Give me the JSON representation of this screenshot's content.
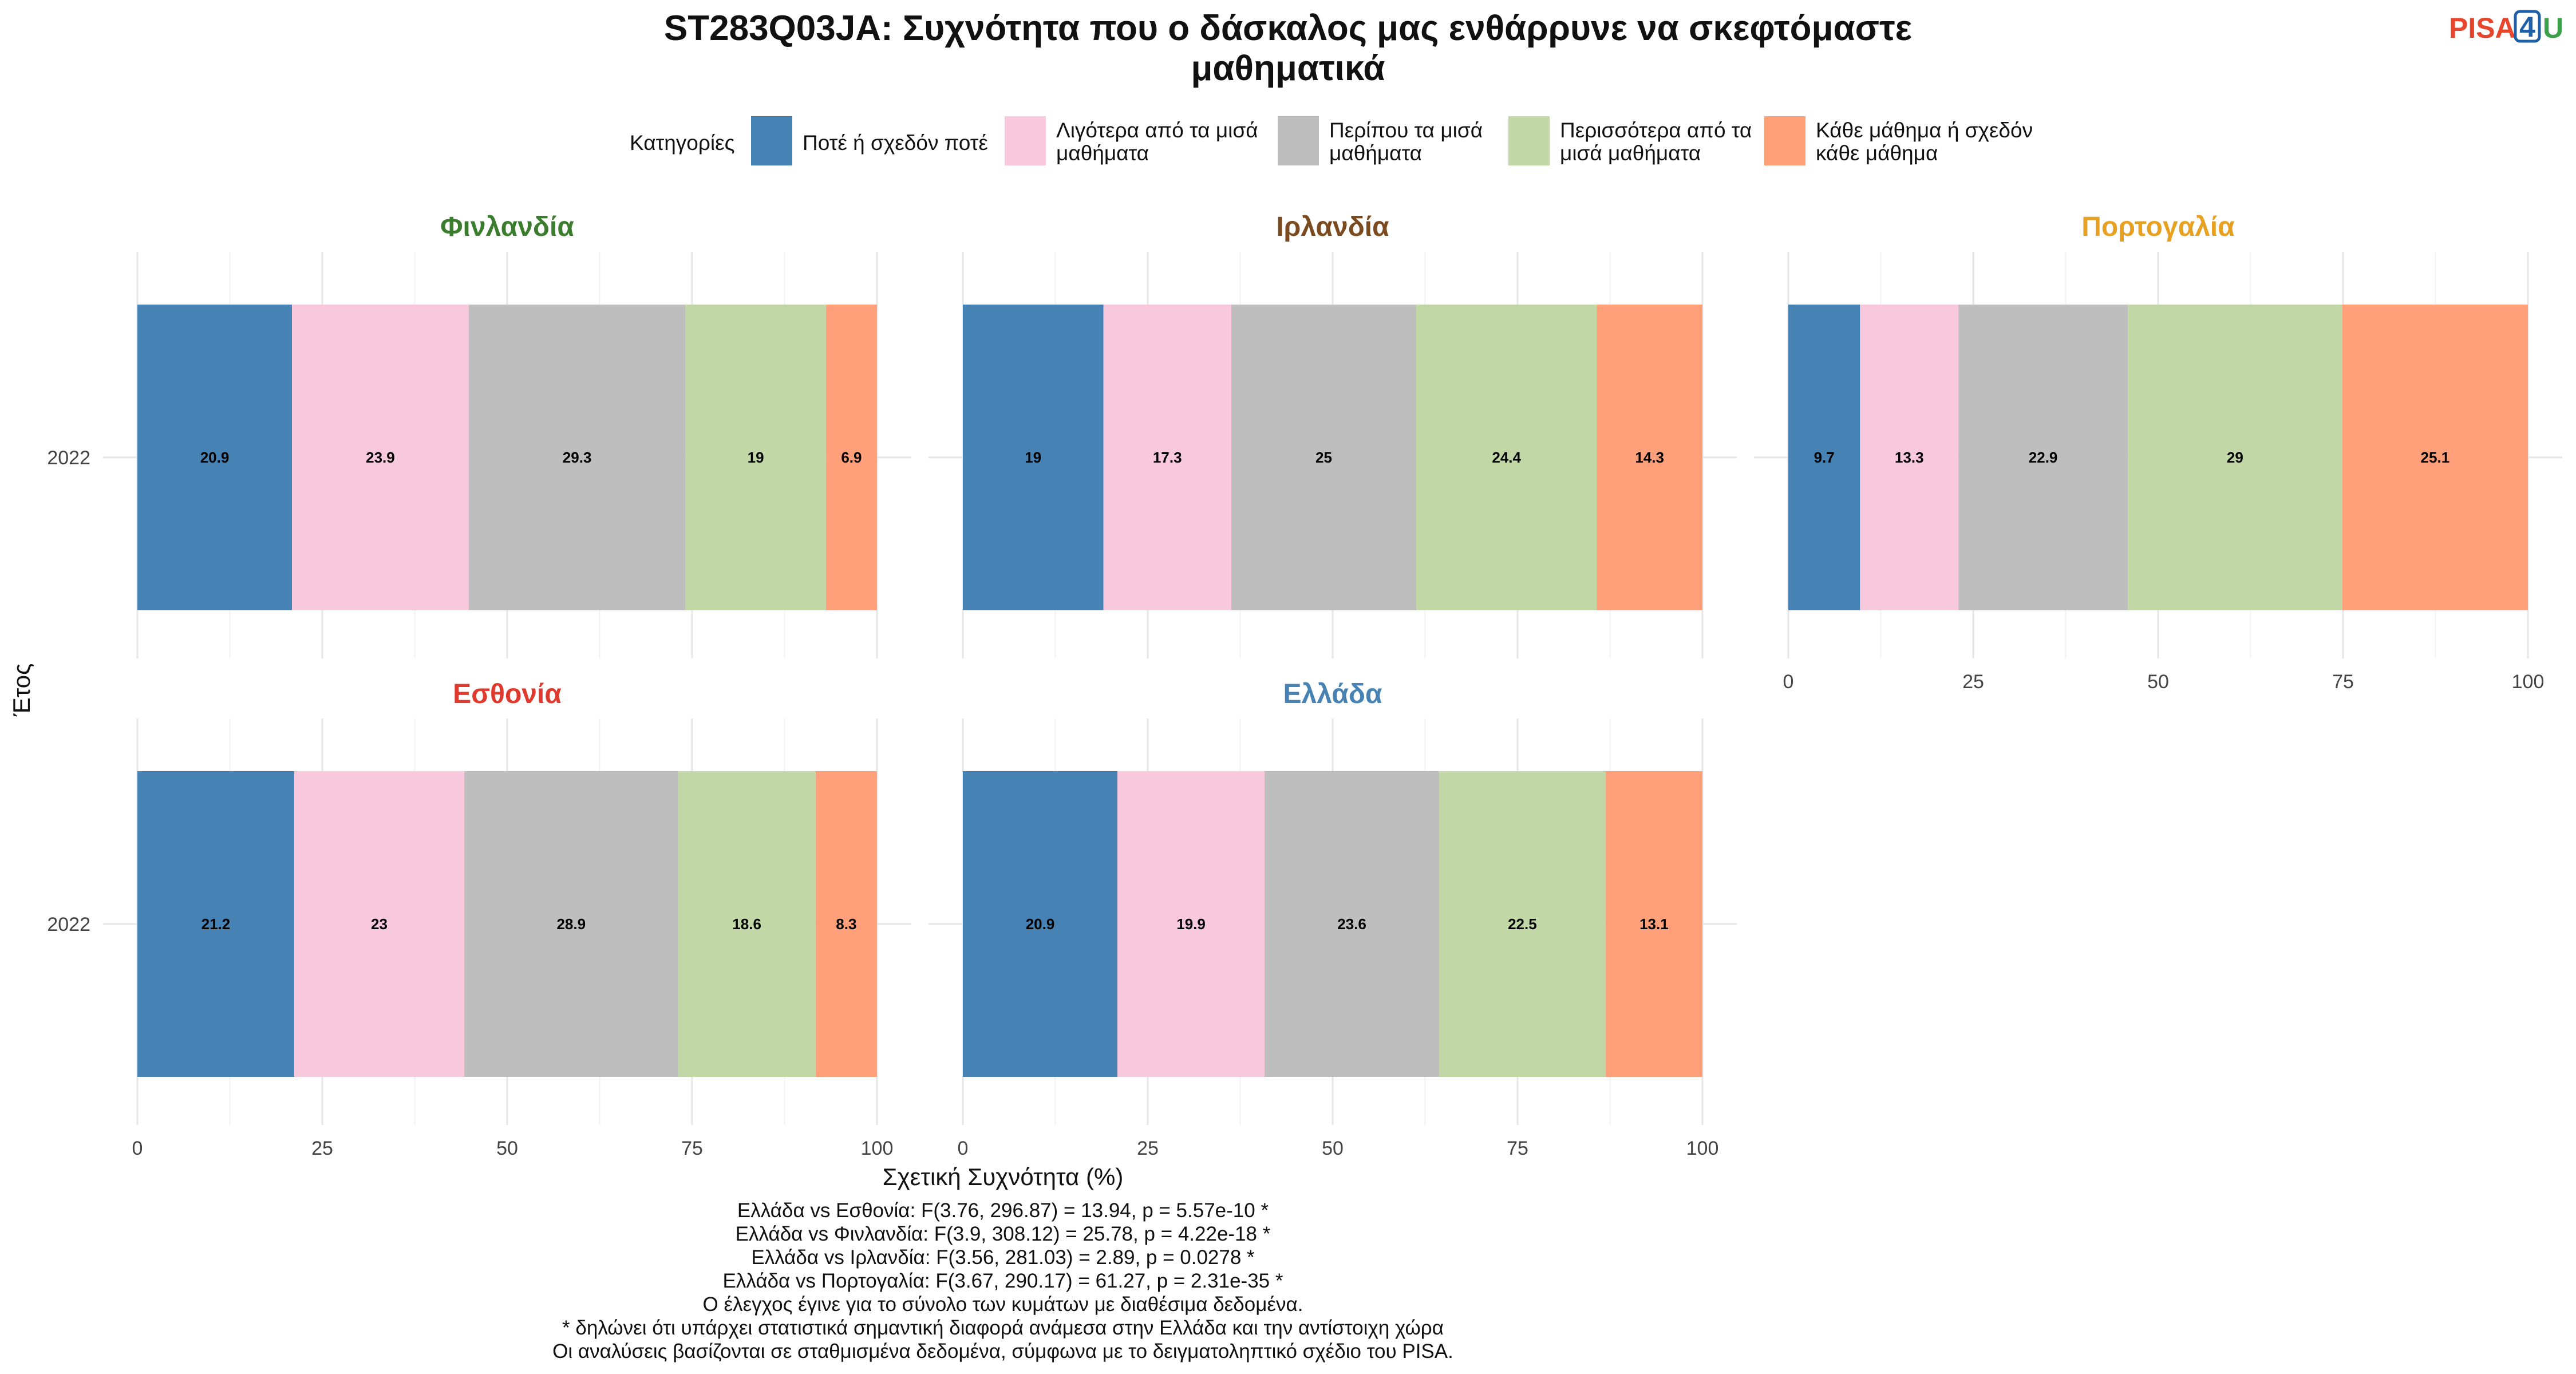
{
  "title_line1": "ST283Q03JA: Συχνότητα που ο δάσκαλος μας ενθάρρυνε να σκεφτόμαστε",
  "title_line2": "μαθηματικά",
  "logo": {
    "part1": "PISA",
    "part2": "4",
    "part3": "U",
    "color1": "#e8452c",
    "color2": "#1f5fa8",
    "color3": "#3aa04a"
  },
  "legend": {
    "title": "Κατηγορίες",
    "items": [
      {
        "lines": [
          "Ποτέ ή σχεδόν ποτέ"
        ],
        "color": "#4682b4"
      },
      {
        "lines": [
          "Λιγότερα από τα μισά",
          "μαθήματα"
        ],
        "color": "#f8c8dc"
      },
      {
        "lines": [
          "Περίπου τα μισά",
          "μαθήματα"
        ],
        "color": "#bebebe"
      },
      {
        "lines": [
          "Περισσότερα από τα",
          "μισά μαθήματα"
        ],
        "color": "#c1d8a6"
      },
      {
        "lines": [
          "Κάθε μάθημα ή σχεδόν",
          "κάθε μάθημα"
        ],
        "color": "#ffa07a"
      }
    ]
  },
  "chart_data": {
    "type": "bar",
    "orientation": "horizontal",
    "stacked": true,
    "xlabel": "Σχετική Συχνότητα (%)",
    "ylabel": "Έτος",
    "xlim": [
      0,
      100
    ],
    "xticks": [
      0,
      25,
      50,
      75,
      100
    ],
    "grid": true,
    "legend_position": "top",
    "categories": [
      "Ποτέ ή σχεδόν ποτέ",
      "Λιγότερα από τα μισά μαθήματα",
      "Περίπου τα μισά μαθήματα",
      "Περισσότερα από τα μισά μαθήματα",
      "Κάθε μάθημα ή σχεδόν κάθε μάθημα"
    ],
    "facets": [
      {
        "name": "Φινλανδία",
        "color": "#3a7d2c",
        "year": "2022",
        "values": [
          20.9,
          23.9,
          29.3,
          19,
          6.9
        ],
        "labels": [
          "20.9",
          "23.9",
          "29.3",
          "19",
          "6.9"
        ]
      },
      {
        "name": "Ιρλανδία",
        "color": "#7b4a1e",
        "year": "2022",
        "values": [
          19,
          17.3,
          25,
          24.4,
          14.3
        ],
        "labels": [
          "19",
          "17.3",
          "25",
          "24.4",
          "14.3"
        ]
      },
      {
        "name": "Πορτογαλία",
        "color": "#e8a020",
        "year": "2022",
        "values": [
          9.7,
          13.3,
          22.9,
          29,
          25.1
        ],
        "labels": [
          "9.7",
          "13.3",
          "22.9",
          "29",
          "25.1"
        ]
      },
      {
        "name": "Εσθονία",
        "color": "#e03a2e",
        "year": "2022",
        "values": [
          21.2,
          23,
          28.9,
          18.6,
          8.3
        ],
        "labels": [
          "21.2",
          "23",
          "28.9",
          "18.6",
          "8.3"
        ]
      },
      {
        "name": "Ελλάδα",
        "color": "#4682b4",
        "year": "2022",
        "values": [
          20.9,
          19.9,
          23.6,
          22.5,
          13.1
        ],
        "labels": [
          "20.9",
          "19.9",
          "23.6",
          "22.5",
          "13.1"
        ]
      }
    ]
  },
  "caption_lines": [
    "Ελλάδα vs Εσθονία: F(3.76, 296.87) = 13.94, p = 5.57e-10 *",
    "Ελλάδα vs Φινλανδία: F(3.9, 308.12) = 25.78, p = 4.22e-18 *",
    "Ελλάδα vs Ιρλανδία: F(3.56, 281.03) = 2.89, p = 0.0278 *",
    "Ελλάδα vs Πορτογαλία: F(3.67, 290.17) = 61.27, p = 2.31e-35 *",
    "Ο έλεγχος έγινε για το σύνολο των κυμάτων με διαθέσιμα δεδομένα.",
    "* δηλώνει ότι υπάρχει στατιστικά σημαντική διαφορά ανάμεσα στην Ελλάδα και την αντίστοιχη χώρα",
    "Οι αναλύσεις βασίζονται σε σταθμισμένα δεδομένα, σύμφωνα με το δειγματοληπτικό σχέδιο του PISA."
  ]
}
